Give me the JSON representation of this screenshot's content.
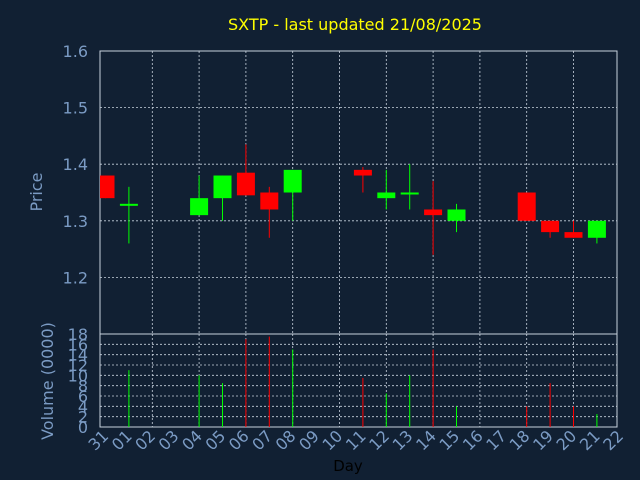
{
  "chart_data": {
    "type": "candlestick",
    "title": "SXTP - last updated 21/08/2025",
    "xlabel": "Day",
    "price_ylabel": "Price",
    "volume_ylabel": "Volume (0000)",
    "up_color": "#00ff00",
    "down_color": "#ff0000",
    "price_ylim": [
      1.1,
      1.6
    ],
    "price_ticks": [
      "1.6",
      "1.5",
      "1.4",
      "1.3",
      "1.2"
    ],
    "volume_ylim": [
      0,
      18
    ],
    "volume_ticks": [
      "18",
      "16",
      "14",
      "12",
      "10",
      "8",
      "6",
      "4",
      "2",
      "0"
    ],
    "x_labels": [
      "31",
      "01",
      "02",
      "03",
      "04",
      "05",
      "06",
      "07",
      "08",
      "09",
      "10",
      "11",
      "12",
      "13",
      "14",
      "15",
      "16",
      "17",
      "18",
      "19",
      "20",
      "21",
      "22"
    ],
    "grid": true,
    "candles": [
      {
        "day": "31",
        "open": 1.38,
        "high": 1.38,
        "low": 1.34,
        "close": 1.34,
        "volume": null
      },
      {
        "day": "01",
        "open": 1.33,
        "high": 1.36,
        "low": 1.26,
        "close": 1.33,
        "volume": 11
      },
      {
        "day": "04",
        "open": 1.31,
        "high": 1.38,
        "low": 1.31,
        "close": 1.34,
        "volume": 10
      },
      {
        "day": "05",
        "open": 1.34,
        "high": 1.38,
        "low": 1.3,
        "close": 1.38,
        "volume": 8.5
      },
      {
        "day": "06",
        "open": 1.385,
        "high": 1.435,
        "low": 1.345,
        "close": 1.345,
        "volume": 17
      },
      {
        "day": "07",
        "open": 1.35,
        "high": 1.36,
        "low": 1.27,
        "close": 1.32,
        "volume": 17.5
      },
      {
        "day": "08",
        "open": 1.35,
        "high": 1.39,
        "low": 1.3,
        "close": 1.39,
        "volume": 15
      },
      {
        "day": "11",
        "open": 1.39,
        "high": 1.395,
        "low": 1.35,
        "close": 1.38,
        "volume": 9.5
      },
      {
        "day": "12",
        "open": 1.34,
        "high": 1.39,
        "low": 1.32,
        "close": 1.35,
        "volume": 6.5
      },
      {
        "day": "13",
        "open": 1.35,
        "high": 1.4,
        "low": 1.32,
        "close": 1.35,
        "volume": 10
      },
      {
        "day": "14",
        "open": 1.32,
        "high": 1.37,
        "low": 1.24,
        "close": 1.31,
        "volume": 15
      },
      {
        "day": "15",
        "open": 1.3,
        "high": 1.33,
        "low": 1.28,
        "close": 1.32,
        "volume": 4
      },
      {
        "day": "18",
        "open": 1.35,
        "high": 1.35,
        "low": 1.3,
        "close": 1.3,
        "volume": 4
      },
      {
        "day": "19",
        "open": 1.3,
        "high": 1.3,
        "low": 1.27,
        "close": 1.28,
        "volume": 8.5
      },
      {
        "day": "20",
        "open": 1.28,
        "high": 1.3,
        "low": 1.27,
        "close": 1.27,
        "volume": 4
      },
      {
        "day": "21",
        "open": 1.27,
        "high": 1.3,
        "low": 1.26,
        "close": 1.3,
        "volume": 2.5
      }
    ]
  }
}
